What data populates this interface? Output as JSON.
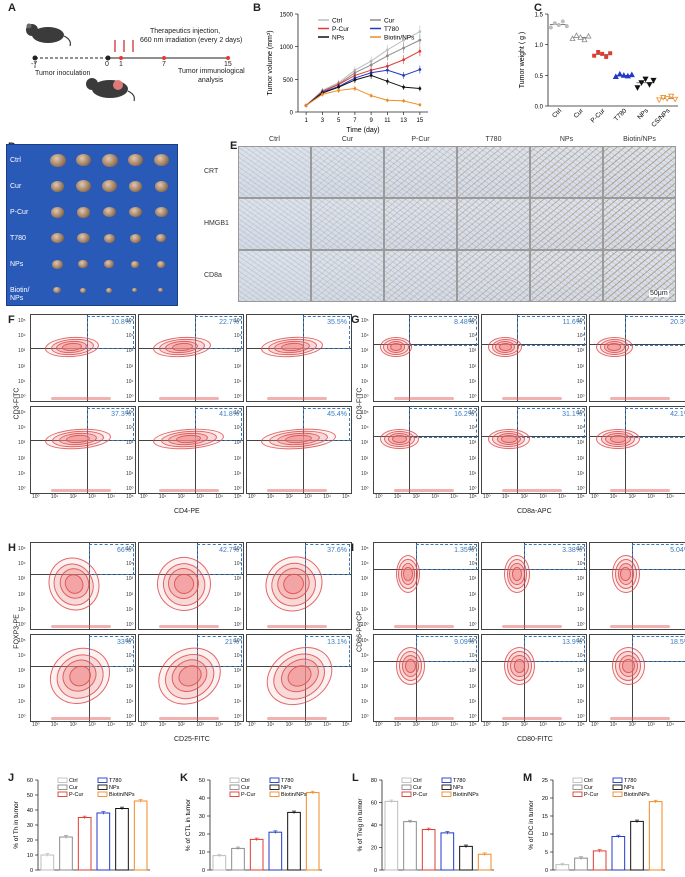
{
  "panels": {
    "A": {
      "label": "A",
      "texts": {
        "inject1": "Therapeutics injection,",
        "inject2": "660 nm irradiation (every 2 days)",
        "inoc": "Tumor inoculation",
        "analysis1": "Tumor immunological",
        "analysis2": "analysis"
      },
      "ticks": [
        "-7",
        "0",
        "1",
        "7",
        "15"
      ]
    },
    "B": {
      "label": "B",
      "chart_data": {
        "type": "line",
        "xlabel": "Time (day)",
        "ylabel": "Tumor volume (mm³)",
        "x": [
          1,
          3,
          5,
          7,
          9,
          11,
          13,
          15
        ],
        "xticks": [
          "1",
          "3",
          "5",
          "7",
          "9",
          "11",
          "13",
          "15"
        ],
        "yticks": [
          "0",
          "500",
          "1000",
          "1500"
        ],
        "ylim": [
          0,
          1500
        ],
        "series": [
          {
            "name": "Ctrl",
            "color": "#bdbdbd",
            "values": [
              100,
              330,
              450,
              640,
              780,
              950,
              1100,
              1230
            ]
          },
          {
            "name": "Cur",
            "color": "#8c8c8c",
            "values": [
              100,
              320,
              430,
              600,
              720,
              860,
              980,
              1100
            ]
          },
          {
            "name": "P-Cur",
            "color": "#e03c31",
            "values": [
              100,
              310,
              420,
              560,
              640,
              700,
              800,
              930
            ]
          },
          {
            "name": "T780",
            "color": "#2438c8",
            "values": [
              100,
              300,
              390,
              520,
              600,
              640,
              560,
              650
            ]
          },
          {
            "name": "NPs",
            "color": "#111111",
            "values": [
              100,
              290,
              380,
              490,
              560,
              470,
              380,
              360
            ]
          },
          {
            "name": "Biotin/NPs",
            "color": "#f08a24",
            "values": [
              100,
              270,
              330,
              360,
              250,
              180,
              170,
              110
            ]
          }
        ]
      }
    },
    "C": {
      "label": "C",
      "chart_data": {
        "type": "scatter",
        "ylabel": "Tumor weight ( g )",
        "categories": [
          "Ctrl",
          "Cur",
          "P-Cur",
          "T780",
          "NPs",
          "CS/NPs"
        ],
        "yticks": [
          "0.0",
          "0.5",
          "1.0",
          "1.5"
        ],
        "ylim": [
          0,
          1.5
        ],
        "colors": [
          "#bdbdbd",
          "#8c8c8c",
          "#e03c31",
          "#2438c8",
          "#111111",
          "#f08a24"
        ],
        "values": [
          [
            1.28,
            1.35,
            1.32,
            1.38,
            1.3
          ],
          [
            1.1,
            1.15,
            1.12,
            1.08,
            1.14
          ],
          [
            0.82,
            0.88,
            0.85,
            0.8,
            0.86
          ],
          [
            0.48,
            0.52,
            0.5,
            0.49,
            0.51
          ],
          [
            0.3,
            0.38,
            0.44,
            0.35,
            0.42
          ],
          [
            0.1,
            0.14,
            0.12,
            0.16,
            0.11
          ]
        ]
      }
    },
    "D": {
      "label": "D",
      "rows": [
        "Ctrl",
        "Cur",
        "P-Cur",
        "T780",
        "NPs",
        "Biotin/\nNPs"
      ]
    },
    "E": {
      "label": "E",
      "columns": [
        "Ctrl",
        "Cur",
        "P-Cur",
        "T780",
        "NPs",
        "Biotin/NPs"
      ],
      "rows": [
        "CRT",
        "HMGB1",
        "CD8a"
      ],
      "scalebar": "50μm"
    },
    "F": {
      "label": "F",
      "xlabel": "CD4-PE",
      "ylabel": "CD3-FITC",
      "pcts": [
        "10.8%",
        "22.7%",
        "35.5%",
        "37.3%",
        "41.8%",
        "45.4%"
      ]
    },
    "G": {
      "label": "G",
      "xlabel": "CD8a-APC",
      "ylabel": "CD3-FITC",
      "pcts": [
        "8.48%",
        "11.6%",
        "20.3%",
        "16.2%",
        "31.1%",
        "42.1%"
      ]
    },
    "H": {
      "label": "H",
      "xlabel": "CD25-FITC",
      "ylabel": "FOXP3-PE",
      "pcts": [
        "66%",
        "42.7%",
        "37.6%",
        "33%",
        "21%",
        "13.1%"
      ]
    },
    "I": {
      "label": "I",
      "xlabel": "CD80-FITC",
      "ylabel": "CD86-PerCP",
      "pcts": [
        "1.35%",
        "3.38%",
        "5.04%",
        "9.09%",
        "13.9%",
        "18.5%"
      ]
    },
    "flow_ticks": [
      "10⁰",
      "10¹",
      "10²",
      "10³",
      "10⁴",
      "10⁵"
    ],
    "J": {
      "label": "J",
      "chart_data": {
        "type": "bar",
        "ylabel": "% of Th in tumor",
        "categories": [
          "Ctrl",
          "Cur",
          "P-Cur",
          "T780",
          "NPs",
          "Biotin/NPs"
        ],
        "values": [
          10,
          22,
          35,
          38,
          41,
          46
        ],
        "ylim": [
          0,
          60
        ],
        "yticks": [
          "0",
          "10",
          "20",
          "30",
          "40",
          "50",
          "60"
        ]
      }
    },
    "K": {
      "label": "K",
      "chart_data": {
        "type": "bar",
        "ylabel": "% of CTL in tumor",
        "categories": [
          "Ctrl",
          "Cur",
          "P-Cur",
          "T780",
          "NPs",
          "Biotin/NPs"
        ],
        "values": [
          8,
          12,
          17,
          21,
          32,
          43
        ],
        "ylim": [
          0,
          50
        ],
        "yticks": [
          "0",
          "10",
          "20",
          "30",
          "40",
          "50"
        ]
      }
    },
    "L": {
      "label": "L",
      "chart_data": {
        "type": "bar",
        "ylabel": "% of Treg in tumor",
        "categories": [
          "Ctrl",
          "Cur",
          "P-Cur",
          "T780",
          "NPs",
          "Biotin/NPs"
        ],
        "values": [
          61,
          43,
          36,
          33,
          21,
          14
        ],
        "ylim": [
          0,
          80
        ],
        "yticks": [
          "0",
          "20",
          "40",
          "60",
          "80"
        ]
      }
    },
    "M": {
      "label": "M",
      "chart_data": {
        "type": "bar",
        "ylabel": "% of DC in tumor",
        "categories": [
          "Ctrl",
          "Cur",
          "P-Cur",
          "T780",
          "NPs",
          "Biotin/NPs"
        ],
        "values": [
          1.5,
          3.3,
          5.3,
          9.3,
          13.5,
          19
        ],
        "ylim": [
          0,
          25
        ],
        "yticks": [
          "0",
          "5",
          "10",
          "15",
          "20",
          "25"
        ]
      }
    },
    "bar_colors": [
      "#bdbdbd",
      "#8c8c8c",
      "#e03c31",
      "#2438c8",
      "#111111",
      "#f08a24"
    ]
  }
}
